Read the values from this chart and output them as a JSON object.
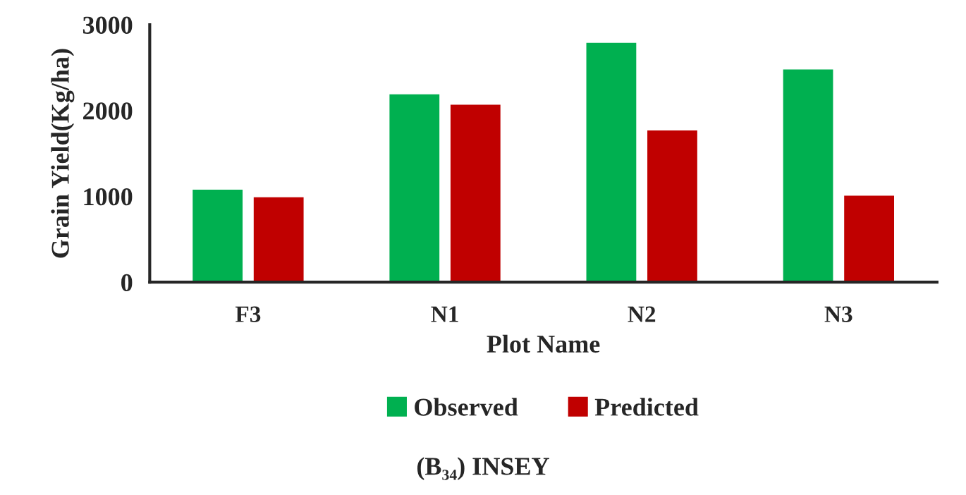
{
  "chart_data": {
    "type": "bar",
    "xlabel": "Plot Name",
    "ylabel": "Grain Yield(Kg/ha)",
    "categories": [
      "F3",
      "N1",
      "N2",
      "N3"
    ],
    "series": [
      {
        "name": "Observed",
        "color": "#00b050",
        "values": [
          1090,
          2200,
          2800,
          2490
        ]
      },
      {
        "name": "Predicted",
        "color": "#c00000",
        "values": [
          1000,
          2080,
          1780,
          1020
        ]
      }
    ],
    "ylim": [
      0,
      3000
    ],
    "yticks": [
      0,
      1000,
      2000,
      3000
    ],
    "grid": false,
    "legend": "bottom",
    "annotations": [
      "(B₃₄) INSEY"
    ]
  }
}
